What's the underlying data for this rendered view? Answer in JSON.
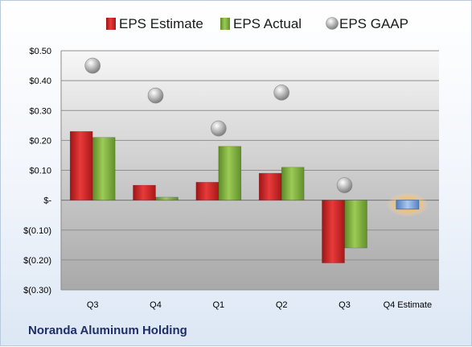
{
  "company": "Noranda Aluminum Holding",
  "chart_data": {
    "type": "bar",
    "categories": [
      "Q3",
      "Q4",
      "Q1",
      "Q2",
      "Q3",
      "Q4 Estimate"
    ],
    "series": [
      {
        "name": "EPS Estimate",
        "color": "#d42a2a",
        "values": [
          0.23,
          0.05,
          0.06,
          0.09,
          -0.21,
          -0.03
        ]
      },
      {
        "name": "EPS Actual",
        "color": "#7dac3c",
        "values": [
          0.21,
          0.01,
          0.18,
          0.11,
          -0.16,
          null
        ]
      },
      {
        "name": "EPS GAAP",
        "color": "#a8a8a8",
        "marker": "sphere",
        "values": [
          0.45,
          0.35,
          0.24,
          0.36,
          0.05,
          null
        ]
      }
    ],
    "ylim": [
      -0.3,
      0.5
    ],
    "yticks": [
      {
        "value": 0.5,
        "label": "$0.50"
      },
      {
        "value": 0.4,
        "label": "$0.40"
      },
      {
        "value": 0.3,
        "label": "$0.30"
      },
      {
        "value": 0.2,
        "label": "$0.20"
      },
      {
        "value": 0.1,
        "label": "$0.10"
      },
      {
        "value": 0.0,
        "label": "$-"
      },
      {
        "value": -0.1,
        "label": "$(0.10)"
      },
      {
        "value": -0.2,
        "label": "$(0.20)"
      },
      {
        "value": -0.3,
        "label": "$(0.30)"
      }
    ],
    "estimate_highlight_color": "#6f9ed8",
    "grid": true,
    "legend_position": "top"
  }
}
